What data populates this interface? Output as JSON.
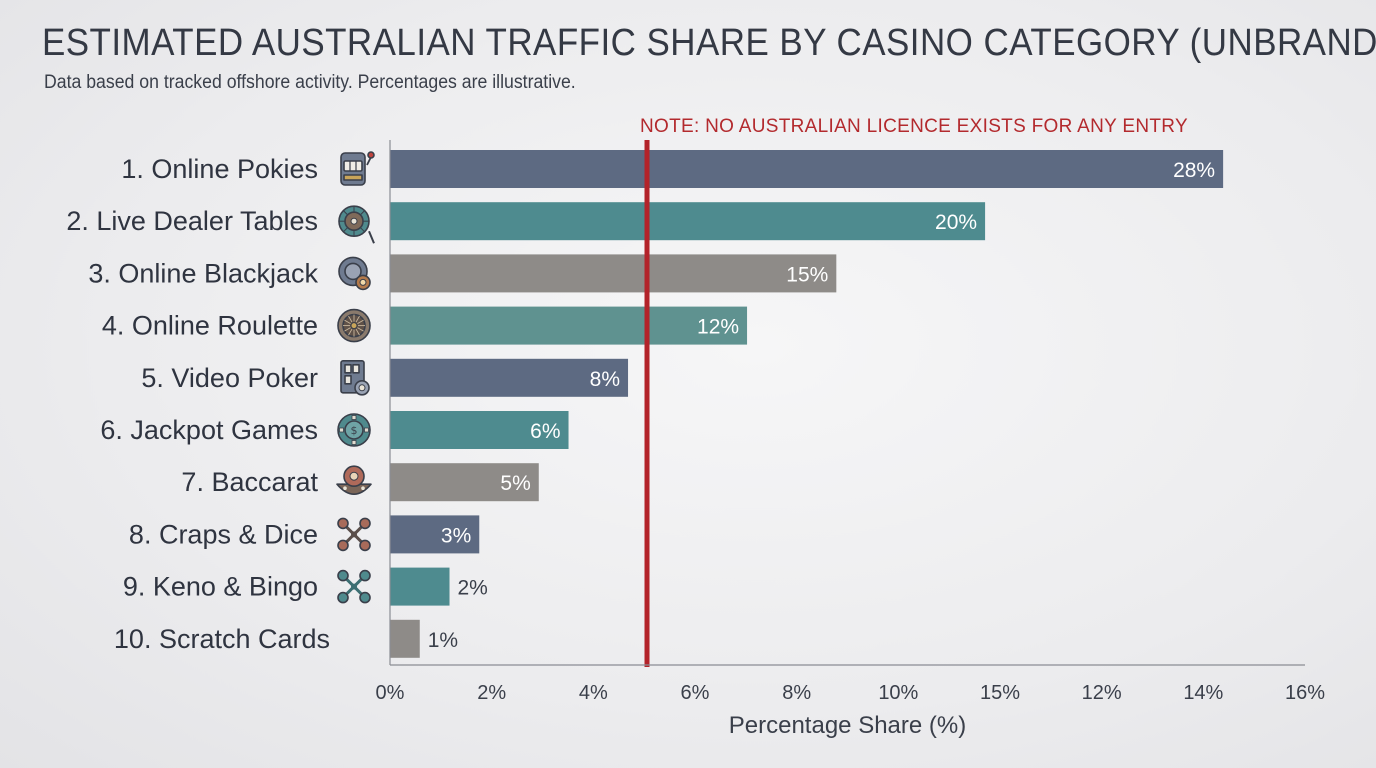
{
  "header": {
    "title": "ESTIMATED AUSTRALIAN TRAFFIC SHARE BY CASINO CATEGORY (UNBRANDED)",
    "subtitle": "Data based on tracked offshore activity. Percentages are illustrative."
  },
  "chart_data": {
    "type": "bar",
    "orientation": "horizontal",
    "categories": [
      "1. Online Pokies",
      "2. Live Dealer Tables",
      "3. Online Blackjack",
      "4. Online Roulette",
      "5. Video Poker",
      "6. Jackpot Games",
      "7. Baccarat",
      "8. Craps & Dice",
      "9. Keno & Bingo",
      "10. Scratch Cards"
    ],
    "values": [
      28,
      20,
      15,
      12,
      8,
      6,
      5,
      3,
      2,
      1
    ],
    "value_labels": [
      "28%",
      "20%",
      "15%",
      "12%",
      "8%",
      "6%",
      "5%",
      "3%",
      "2%",
      "1%"
    ],
    "icons": [
      "slot-machine-icon",
      "roulette-wheel-icon",
      "chip-cards-icon",
      "roulette-icon",
      "video-poker-icon",
      "jackpot-coin-icon",
      "baccarat-icon",
      "dice-icon",
      "keno-icon",
      ""
    ],
    "bar_colors": [
      "#5d6a82",
      "#4e8b8f",
      "#8e8b88",
      "#5f9290",
      "#5d6a82",
      "#4e8b8f",
      "#8e8b88",
      "#5d6a82",
      "#4e8b8f",
      "#8e8b88"
    ],
    "x_ticks": [
      "0%",
      "2%",
      "4%",
      "6%",
      "8%",
      "10%",
      "15%",
      "12%",
      "14%",
      "16%"
    ],
    "xlabel": "Percentage Share (%)",
    "ylabel": "",
    "xlim": [
      0,
      28.5
    ],
    "reference_line": {
      "label": "NOTE: NO AUSTRALIAN LICENCE EXISTS FOR ANY ENTRY",
      "color": "#b3232a"
    },
    "grid": false,
    "legend": "none"
  }
}
